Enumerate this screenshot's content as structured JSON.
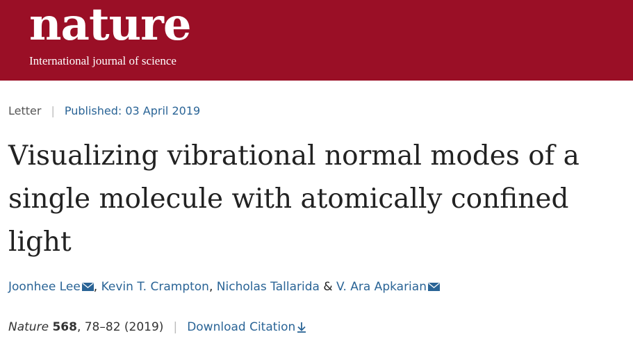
{
  "header": {
    "logo_text": "nature",
    "tagline": "International journal of science",
    "brand_color": "#9a0f26"
  },
  "article": {
    "type": "Letter",
    "published": "Published: 03 April 2019",
    "title": "Visualizing vibrational normal modes of a single molecule with atomically confined light",
    "authors": {
      "a1": "Joonhee Lee",
      "comma1": ",",
      "a2": "Kevin T. Crampton",
      "comma2": ",",
      "a3": "Nicholas Tallarida",
      "amp": "&",
      "a4": "V. Ara Apkarian"
    },
    "citation": {
      "journal": "Nature",
      "volume": "568",
      "pages": ", 78–82 (2019)",
      "download_label": "Download Citation"
    },
    "link_color": "#2a6496",
    "icons": {
      "email": "envelope-icon",
      "download": "download-arrow-icon"
    }
  }
}
